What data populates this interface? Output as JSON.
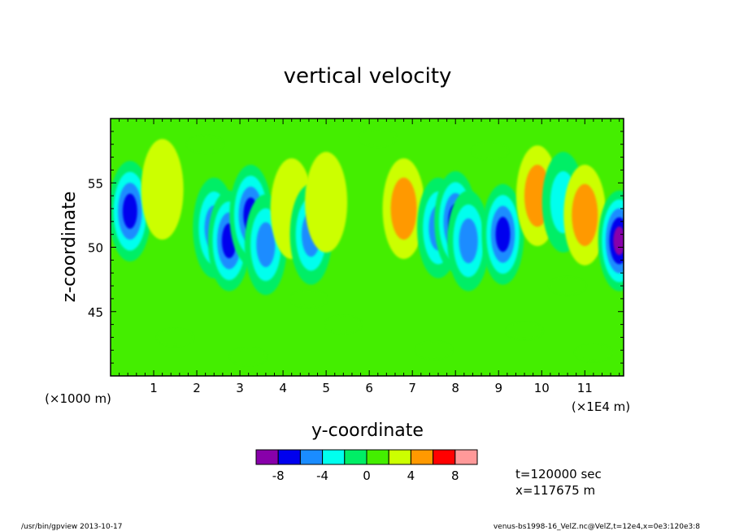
{
  "chart_data": {
    "type": "heatmap",
    "title": "vertical velocity",
    "xlabel": "y-coordinate",
    "ylabel": "z-coordinate",
    "x_unit_left": "(×1000 m)",
    "x_unit_right": "(×1E4 m)",
    "xlim": [
      0,
      11.9
    ],
    "ylim": [
      40,
      60
    ],
    "x_ticks": [
      1,
      2,
      3,
      4,
      5,
      6,
      7,
      8,
      9,
      10,
      11
    ],
    "y_ticks": [
      45,
      50,
      55
    ],
    "grid": false,
    "colorbar": {
      "levels": [
        -10,
        -8,
        -6,
        -4,
        -2,
        0,
        2,
        4,
        6,
        8,
        10
      ],
      "tick_labels": [
        "-8",
        "-4",
        "0",
        "4",
        "8"
      ],
      "tick_values": [
        -8,
        -4,
        0,
        4,
        8
      ],
      "colors": [
        "#8800aa",
        "#0000ee",
        "#1a8cff",
        "#00ffee",
        "#00ee66",
        "#44ee00",
        "#ccff00",
        "#ff9900",
        "#ff0000",
        "#ff9999"
      ]
    },
    "background_value": 1,
    "features": [
      {
        "y": 0.45,
        "z": 52.8,
        "value": -7.5
      },
      {
        "y": 1.2,
        "z": 54.5,
        "value": 3.8
      },
      {
        "y": 2.4,
        "z": 51.5,
        "value": -5.5
      },
      {
        "y": 2.75,
        "z": 50.5,
        "value": -8.0
      },
      {
        "y": 3.25,
        "z": 52.5,
        "value": -7.5
      },
      {
        "y": 3.6,
        "z": 50.2,
        "value": -4.5
      },
      {
        "y": 4.2,
        "z": 53.0,
        "value": 3.5
      },
      {
        "y": 4.65,
        "z": 51.0,
        "value": -4.5
      },
      {
        "y": 5.0,
        "z": 53.5,
        "value": 3.5
      },
      {
        "y": 6.8,
        "z": 53.0,
        "value": 4.5
      },
      {
        "y": 7.6,
        "z": 51.5,
        "value": -5.0
      },
      {
        "y": 8.0,
        "z": 52.0,
        "value": -7.5
      },
      {
        "y": 8.3,
        "z": 50.5,
        "value": -5.5
      },
      {
        "y": 9.1,
        "z": 51.0,
        "value": -7.0
      },
      {
        "y": 9.9,
        "z": 54.0,
        "value": 5.0
      },
      {
        "y": 10.5,
        "z": 53.5,
        "value": -2.5
      },
      {
        "y": 11.0,
        "z": 52.5,
        "value": 4.2
      },
      {
        "y": 11.8,
        "z": 50.5,
        "value": -8.5
      }
    ]
  },
  "annotations": {
    "time": "t=120000 sec",
    "xpos": "x=117675 m"
  },
  "footer": {
    "left": "/usr/bin/gpview  2013-10-17",
    "right": "venus-bs1998-16_VelZ.nc@VelZ,t=12e4,x=0e3:120e3:8"
  }
}
